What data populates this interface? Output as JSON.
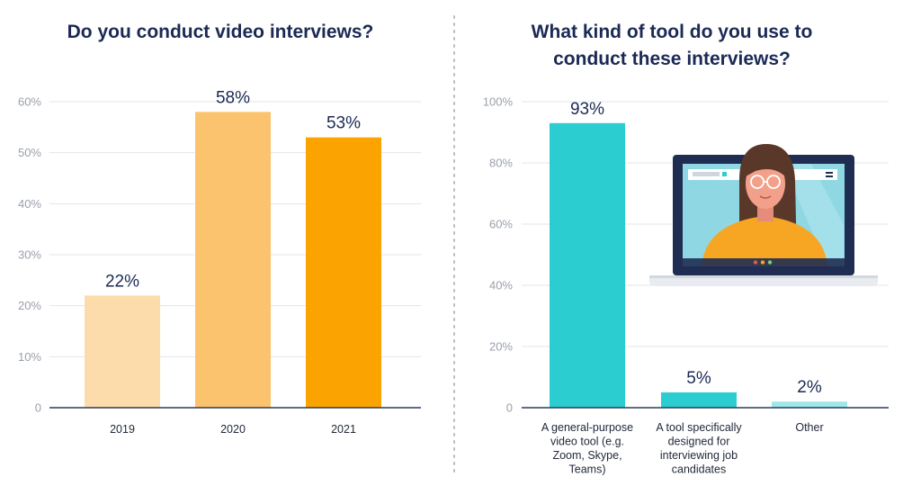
{
  "chart_data": [
    {
      "type": "bar",
      "title": "Do you conduct video interviews?",
      "categories": [
        "2019",
        "2020",
        "2021"
      ],
      "values": [
        22,
        58,
        53
      ],
      "value_labels": [
        "22%",
        "58%",
        "53%"
      ],
      "yticks": [
        "0",
        "10%",
        "20%",
        "30%",
        "40%",
        "50%",
        "60%"
      ],
      "ylim": [
        0,
        60
      ],
      "grid": true,
      "colors": [
        "#fddcab",
        "#fcc36e",
        "#fba300"
      ]
    },
    {
      "type": "bar",
      "title": [
        "What kind of tool do you use to",
        "conduct these interviews?"
      ],
      "categories": [
        [
          "A general-purpose",
          "video tool (e.g.",
          "Zoom, Skype,",
          "Teams)"
        ],
        [
          "A tool specifically",
          "designed for",
          "interviewing job",
          "candidates"
        ],
        [
          "Other"
        ]
      ],
      "values": [
        93,
        5,
        2
      ],
      "value_labels": [
        "93%",
        "5%",
        "2%"
      ],
      "yticks": [
        "0",
        "20%",
        "40%",
        "60%",
        "80%",
        "100%"
      ],
      "ylim": [
        0,
        100
      ],
      "grid": true,
      "colors": [
        "#2ccdd1",
        "#2ccdd1",
        "#9fe7ea"
      ]
    }
  ],
  "illustration": {
    "name": "laptop-video-call-illustration"
  }
}
